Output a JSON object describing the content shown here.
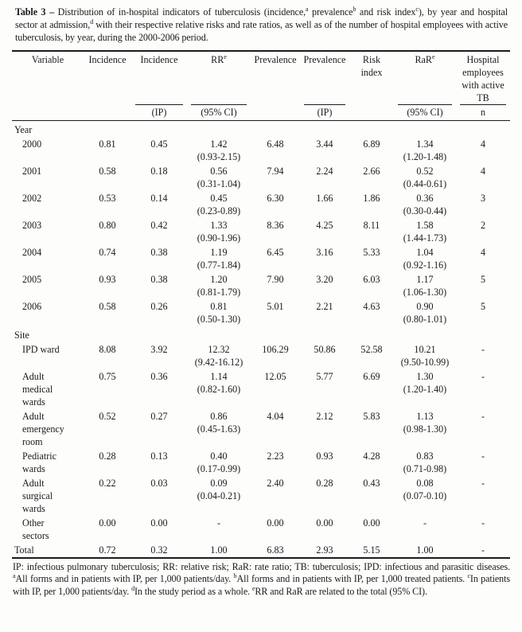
{
  "title": {
    "label": "Table 3 – ",
    "part1": "Distribution of in-hospital indicators of tuberculosis (incidence,",
    "sup_a": "a",
    "part2": " prevalence",
    "sup_b": "b",
    "part3": " and risk index",
    "sup_c": "c",
    "part4": "), by year and hospital sector at admission,",
    "sup_d": "d",
    "part5": " with their respective relative risks and rate ratios, as well as of the number of hospital employees with active tuberculosis, by year, during the 2000-2006 period."
  },
  "table": {
    "header": {
      "variable": "Variable",
      "incidence": "Incidence",
      "incidence_ip": "Incidence",
      "incidence_ip_sub": "(IP)",
      "rr": "RR",
      "rr_sup": "e",
      "rr_sub": "(95% CI)",
      "prevalence": "Prevalence",
      "prevalence_ip": "Prevalence",
      "prevalence_ip_sub": "(IP)",
      "risk_index": "Risk index",
      "rar": "RaR",
      "rar_sup": "e",
      "rar_sub": "(95% CI)",
      "employees": "Hospital employees with active TB",
      "employees_sub": "n"
    },
    "rows": [
      {
        "type": "section",
        "label": "Year"
      },
      {
        "type": "data",
        "label": "2000",
        "values": [
          "0.81",
          "0.45",
          "1.42",
          "(0.93-2.15)",
          "6.48",
          "3.44",
          "6.89",
          "1.34",
          "(1.20-1.48)",
          "4"
        ]
      },
      {
        "type": "data",
        "label": "2001",
        "values": [
          "0.58",
          "0.18",
          "0.56",
          "(0.31-1.04)",
          "7.94",
          "2.24",
          "2.66",
          "0.52",
          "(0.44-0.61)",
          "4"
        ]
      },
      {
        "type": "data",
        "label": "2002",
        "values": [
          "0.53",
          "0.14",
          "0.45",
          "(0.23-0.89)",
          "6.30",
          "1.66",
          "1.86",
          "0.36",
          "(0.30-0.44)",
          "3"
        ]
      },
      {
        "type": "data",
        "label": "2003",
        "values": [
          "0.80",
          "0.42",
          "1.33",
          "(0.90-1.96)",
          "8.36",
          "4.25",
          "8.11",
          "1.58",
          "(1.44-1.73)",
          "2"
        ]
      },
      {
        "type": "data",
        "label": "2004",
        "values": [
          "0.74",
          "0.38",
          "1.19",
          "(0.77-1.84)",
          "6.45",
          "3.16",
          "5.33",
          "1.04",
          "(0.92-1.16)",
          "4"
        ]
      },
      {
        "type": "data",
        "label": "2005",
        "values": [
          "0.93",
          "0.38",
          "1.20",
          "(0.81-1.79)",
          "7.90",
          "3.20",
          "6.03",
          "1.17",
          "(1.06-1.30)",
          "5"
        ]
      },
      {
        "type": "data",
        "label": "2006",
        "values": [
          "0.58",
          "0.26",
          "0.81",
          "(0.50-1.30)",
          "5.01",
          "2.21",
          "4.63",
          "0.90",
          "(0.80-1.01)",
          "5"
        ]
      },
      {
        "type": "section",
        "label": "Site"
      },
      {
        "type": "data",
        "label": "IPD ward",
        "values": [
          "8.08",
          "3.92",
          "12.32",
          "(9.42-16.12)",
          "106.29",
          "50.86",
          "52.58",
          "10.21",
          "(9.50-10.99)",
          "-"
        ]
      },
      {
        "type": "data",
        "label": "Adult medical wards",
        "values": [
          "0.75",
          "0.36",
          "1.14",
          "(0.82-1.60)",
          "12.05",
          "5.77",
          "6.69",
          "1.30",
          "(1.20-1.40)",
          "-"
        ]
      },
      {
        "type": "data",
        "label": "Adult emergency room",
        "values": [
          "0.52",
          "0.27",
          "0.86",
          "(0.45-1.63)",
          "4.04",
          "2.12",
          "5.83",
          "1.13",
          "(0.98-1.30)",
          "-"
        ]
      },
      {
        "type": "data",
        "label": "Pediatric wards",
        "values": [
          "0.28",
          "0.13",
          "0.40",
          "(0.17-0.99)",
          "2.23",
          "0.93",
          "4.28",
          "0.83",
          "(0.71-0.98)",
          "-"
        ]
      },
      {
        "type": "data",
        "label": "Adult surgical wards",
        "values": [
          "0.22",
          "0.03",
          "0.09",
          "(0.04-0.21)",
          "2.40",
          "0.28",
          "0.43",
          "0.08",
          "(0.07-0.10)",
          "-"
        ]
      },
      {
        "type": "data",
        "label": "Other sectors",
        "values": [
          "0.00",
          "0.00",
          "-",
          "",
          "0.00",
          "0.00",
          "0.00",
          "-",
          "",
          "-"
        ]
      },
      {
        "type": "total",
        "label": "Total",
        "values": [
          "0.72",
          "0.32",
          "1.00",
          "",
          "6.83",
          "2.93",
          "5.15",
          "1.00",
          "",
          "-"
        ]
      }
    ]
  },
  "footnote": {
    "part1": "IP: infectious pulmonary tuberculosis; RR: relative risk; RaR: rate ratio; TB: tuberculosis; IPD: infectious and parasitic diseases. ",
    "sup_a": "a",
    "part2": "All forms and in patients with IP, per 1,000 patients/day. ",
    "sup_b": "b",
    "part3": "All forms and in patients with IP, per 1,000 treated patients. ",
    "sup_c": "c",
    "part4": "In patients with IP, per 1,000 patients/day. ",
    "sup_d": "d",
    "part5": "In the study period as a whole. ",
    "sup_e": "e",
    "part6": "RR and RaR are related to the total (95% CI)."
  }
}
